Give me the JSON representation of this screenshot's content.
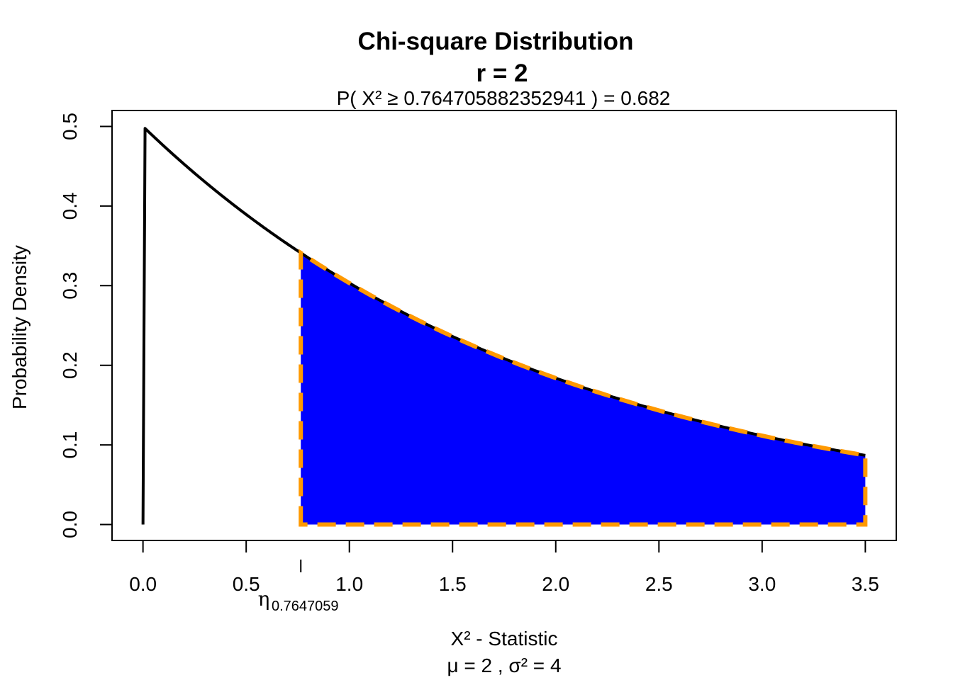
{
  "chart_data": {
    "type": "area",
    "title": "Chi-square Distribution",
    "subtitle": "r  =  2",
    "probability_label": "P(  X²  ≥  0.764705882352941  ) = 0.682",
    "xlabel": "X² - Statistic",
    "xlabel_sub": "μ =  2 , σ² =  4",
    "ylabel": "Probability Density",
    "xlim": [
      -0.15,
      3.65
    ],
    "ylim": [
      -0.02,
      0.52
    ],
    "x_ticks": [
      0.0,
      0.5,
      1.0,
      1.5,
      2.0,
      2.5,
      3.0,
      3.5
    ],
    "x_tick_labels": [
      "0.0",
      "0.5",
      "1.0",
      "1.5",
      "2.0",
      "2.5",
      "3.0",
      "3.5"
    ],
    "y_ticks": [
      0.0,
      0.1,
      0.2,
      0.3,
      0.4,
      0.5
    ],
    "y_tick_labels": [
      "0.0",
      "0.1",
      "0.2",
      "0.3",
      "0.4",
      "0.5"
    ],
    "degrees_of_freedom": 2,
    "curve": {
      "function": "0.5*exp(-x/2)",
      "x_start": 0.0,
      "x_end": 3.5,
      "start_value": 0.0,
      "color": "#000000"
    },
    "shaded_region": {
      "from": 0.764705882352941,
      "to": 3.5,
      "probability": 0.682,
      "fill": "#0000ff",
      "border": "#ff9900",
      "border_style": "dashed"
    },
    "critical_value": {
      "x": 0.764705882352941,
      "symbol": "η",
      "subscript": "0.7647059"
    },
    "grid": false,
    "legend": "none"
  }
}
